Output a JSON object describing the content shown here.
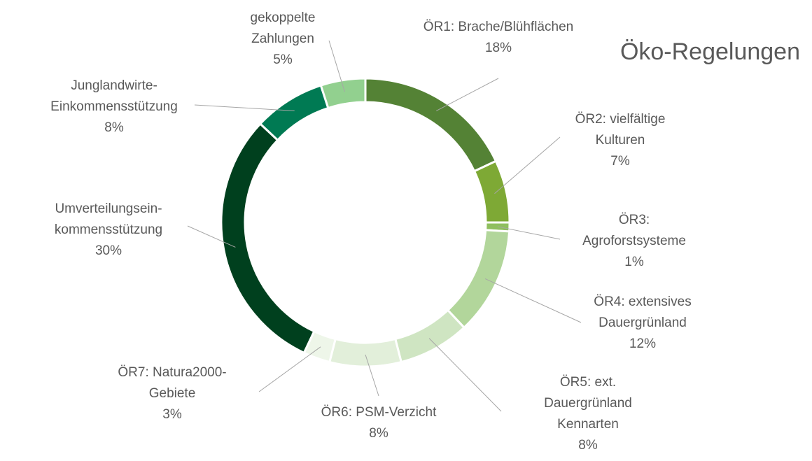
{
  "chart_data": {
    "type": "pie",
    "title": "Öko-Regelungen",
    "donut": true,
    "start_angle_deg": 0,
    "direction": "clockwise",
    "legend": "none",
    "slices": [
      {
        "lines": [
          "ÖR1: Brache/Blühflächen",
          "18%"
        ],
        "value": 18,
        "color": "#548235"
      },
      {
        "lines": [
          "ÖR2: vielfältige",
          "Kulturen",
          "7%"
        ],
        "value": 7,
        "color": "#7ea935"
      },
      {
        "lines": [
          "ÖR3:",
          "Agroforstsysteme",
          "1%"
        ],
        "value": 1,
        "color": "#8fbf5e"
      },
      {
        "lines": [
          "ÖR4: extensives",
          "Dauergrünland",
          "12%"
        ],
        "value": 12,
        "color": "#b2d69b"
      },
      {
        "lines": [
          "ÖR5: ext.",
          "Dauergrünland",
          "Kennarten",
          "8%"
        ],
        "value": 8,
        "color": "#cfe5c2"
      },
      {
        "lines": [
          "ÖR6: PSM-Verzicht",
          "8%"
        ],
        "value": 8,
        "color": "#e2efda"
      },
      {
        "lines": [
          "ÖR7: Natura2000-",
          "Gebiete",
          "3%"
        ],
        "value": 3,
        "color": "#eef6e9"
      },
      {
        "lines": [
          "Umverteilungsein-",
          "kommensstützung",
          "30%"
        ],
        "value": 30,
        "color": "#00401e"
      },
      {
        "lines": [
          "Junglandwirte-",
          "Einkommensstützung",
          "8%"
        ],
        "value": 8,
        "color": "#007a53"
      },
      {
        "lines": [
          "gekoppelte",
          "Zahlungen",
          "5%"
        ],
        "value": 5,
        "color": "#92d08f"
      }
    ]
  }
}
